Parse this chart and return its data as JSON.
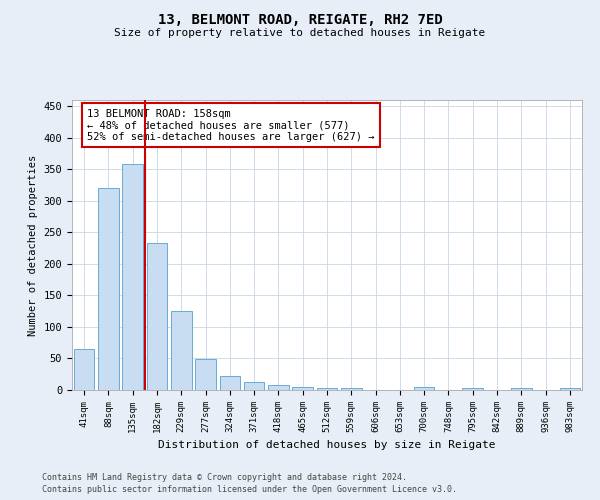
{
  "title1": "13, BELMONT ROAD, REIGATE, RH2 7ED",
  "title2": "Size of property relative to detached houses in Reigate",
  "xlabel": "Distribution of detached houses by size in Reigate",
  "ylabel": "Number of detached properties",
  "categories": [
    "41sqm",
    "88sqm",
    "135sqm",
    "182sqm",
    "229sqm",
    "277sqm",
    "324sqm",
    "371sqm",
    "418sqm",
    "465sqm",
    "512sqm",
    "559sqm",
    "606sqm",
    "653sqm",
    "700sqm",
    "748sqm",
    "795sqm",
    "842sqm",
    "889sqm",
    "936sqm",
    "983sqm"
  ],
  "values": [
    65,
    320,
    358,
    233,
    125,
    49,
    23,
    13,
    8,
    5,
    3,
    3,
    0,
    0,
    4,
    0,
    3,
    0,
    3,
    0,
    3
  ],
  "bar_color": "#c8ddf2",
  "bar_edgecolor": "#6aaad4",
  "vline_x": 2.5,
  "vline_color": "#cc0000",
  "annotation_text": "13 BELMONT ROAD: 158sqm\n← 48% of detached houses are smaller (577)\n52% of semi-detached houses are larger (627) →",
  "annotation_box_color": "#ffffff",
  "annotation_box_edgecolor": "#cc0000",
  "ylim": [
    0,
    460
  ],
  "yticks": [
    0,
    50,
    100,
    150,
    200,
    250,
    300,
    350,
    400,
    450
  ],
  "footer1": "Contains HM Land Registry data © Crown copyright and database right 2024.",
  "footer2": "Contains public sector information licensed under the Open Government Licence v3.0.",
  "bg_color": "#e8eef8",
  "plot_bg_color": "#ffffff",
  "grid_color": "#c8d4e8"
}
